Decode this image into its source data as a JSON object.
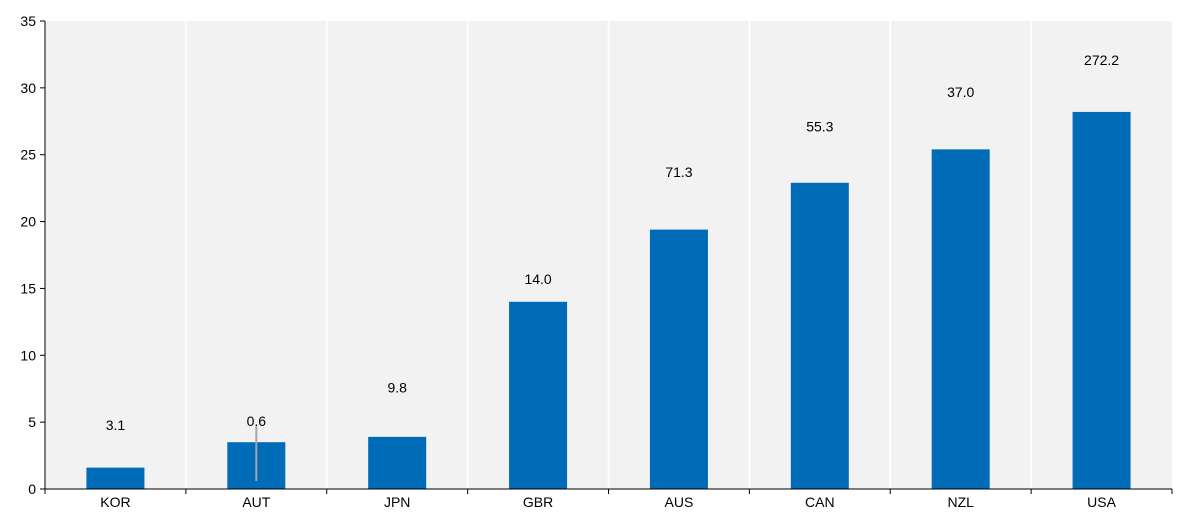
{
  "chart_data": {
    "type": "bar",
    "title": "",
    "xlabel": "",
    "ylabel": "",
    "categories": [
      "KOR",
      "AUT",
      "JPN",
      "GBR",
      "AUS",
      "CAN",
      "NZL",
      "USA"
    ],
    "series": [
      {
        "values": [
          1.6,
          3.5,
          3.9,
          14.0,
          19.4,
          22.9,
          25.4,
          28.2
        ],
        "color": "#006bb6"
      }
    ],
    "data_labels": [
      "3.1",
      "0.6",
      "9.8",
      "14.0",
      "71.3",
      "55.3",
      "37.0",
      "272.2"
    ],
    "data_label_values": [
      4.8,
      5.1,
      7.6,
      15.7,
      23.7,
      27.1,
      29.7,
      32.1
    ],
    "error_marker": {
      "category": "AUT",
      "low": 0.6,
      "high": 4.7,
      "color": "#a6a6a6"
    },
    "ylim": [
      0,
      35
    ],
    "yticks": [
      0,
      5,
      10,
      15,
      20,
      25,
      30,
      35
    ],
    "grid": "vertical-only",
    "plot_background": "#f2f2f2",
    "gridline_color": "#ffffff",
    "legend": "none"
  }
}
